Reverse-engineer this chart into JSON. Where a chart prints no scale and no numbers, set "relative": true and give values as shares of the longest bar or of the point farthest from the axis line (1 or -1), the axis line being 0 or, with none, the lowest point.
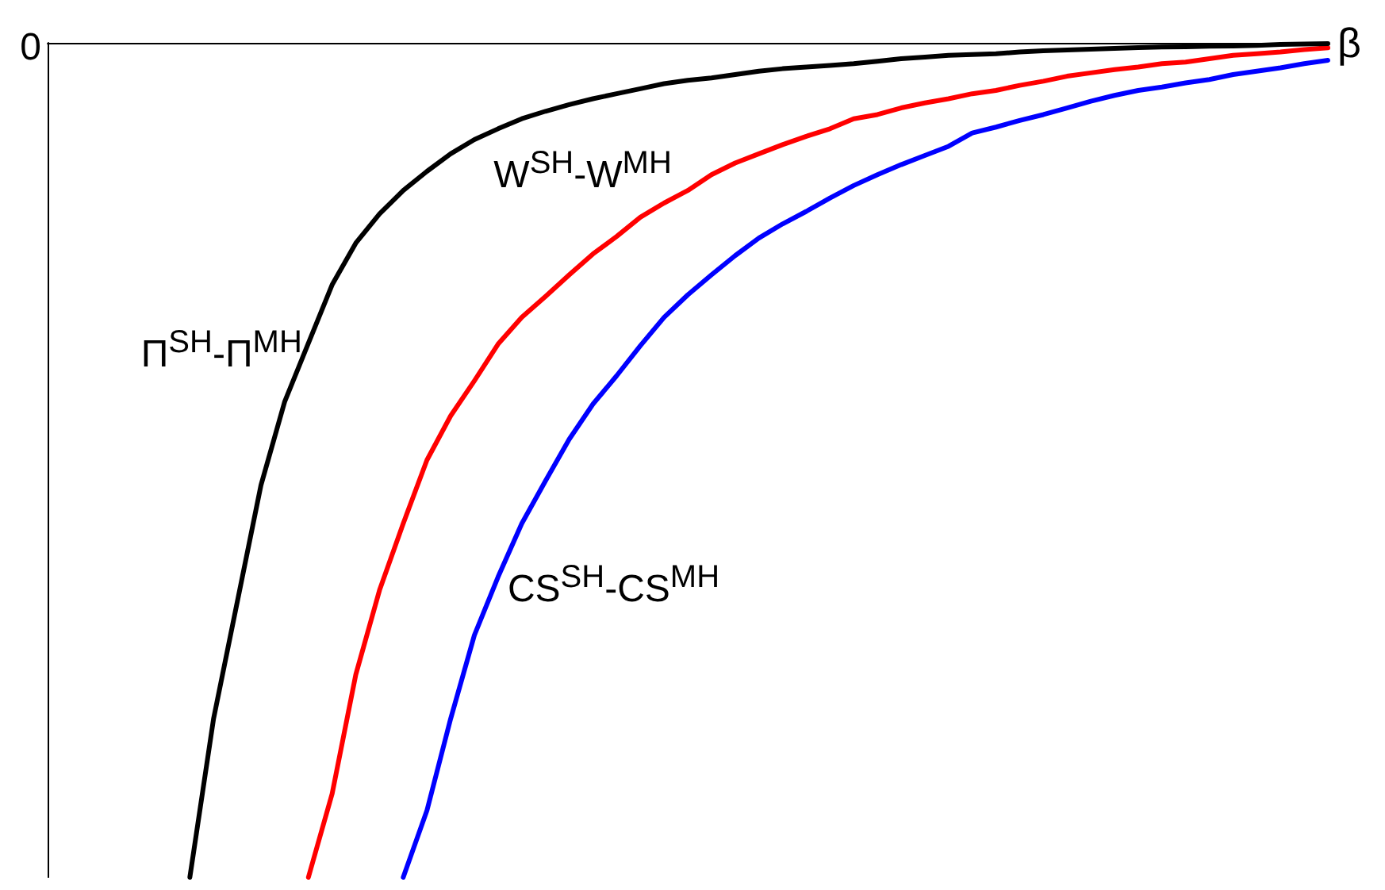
{
  "chart_data": {
    "type": "line",
    "relative": true,
    "xlabel": "β",
    "annotations": [
      "0"
    ],
    "legend": false,
    "grid": false,
    "marker": "none",
    "line_style": "solid",
    "categories": [
      null,
      null,
      null,
      null,
      null,
      null,
      null,
      null,
      null,
      null,
      null,
      null,
      null,
      null,
      null,
      null,
      null,
      null,
      null,
      null,
      null,
      null,
      null,
      null,
      null,
      null,
      null,
      null,
      null,
      null,
      null,
      null,
      null,
      null,
      null,
      null,
      null,
      null,
      null,
      null,
      null,
      null,
      null,
      null,
      null,
      null,
      null,
      null,
      null,
      null,
      null,
      null,
      null,
      null,
      null
    ],
    "series": [
      {
        "name": "Π$^{SH}$-Π$^{MH}$",
        "color": "#000000",
        "values": [
          null,
          null,
          null,
          null,
          null,
          null,
          -1,
          -0.81,
          -0.67,
          -0.53,
          -0.43,
          -0.36,
          -0.29,
          -0.24,
          -0.205,
          -0.177,
          -0.154,
          -0.133,
          -0.116,
          -0.103,
          -0.091,
          -0.082,
          -0.074,
          -0.067,
          -0.061,
          -0.055,
          -0.049,
          -0.045,
          -0.042,
          -0.038,
          -0.034,
          -0.031,
          -0.029,
          -0.027,
          -0.025,
          -0.022,
          -0.019,
          -0.017,
          -0.015,
          -0.014,
          -0.013,
          -0.011,
          -0.0095,
          -0.0085,
          -0.0076,
          -0.0066,
          -0.0057,
          -0.005,
          -0.0048,
          -0.004,
          -0.0038,
          -0.003,
          -0.002,
          -0.0015,
          -0.001
        ]
      },
      {
        "name": "W$^{SH}$-W$^{MH}$",
        "color": "#ff0000",
        "values": [
          null,
          null,
          null,
          null,
          null,
          null,
          null,
          null,
          null,
          null,
          null,
          -1,
          -0.9,
          -0.757,
          -0.656,
          -0.576,
          -0.5,
          -0.447,
          -0.405,
          -0.361,
          -0.329,
          -0.304,
          -0.278,
          -0.253,
          -0.232,
          -0.209,
          -0.192,
          -0.177,
          -0.158,
          -0.144,
          -0.133,
          -0.122,
          -0.112,
          -0.103,
          -0.091,
          -0.086,
          -0.078,
          -0.072,
          -0.067,
          -0.061,
          -0.057,
          -0.051,
          -0.046,
          -0.04,
          -0.036,
          -0.032,
          -0.029,
          -0.025,
          -0.023,
          -0.019,
          -0.015,
          -0.013,
          -0.011,
          -0.008,
          -0.006
        ]
      },
      {
        "name": "CS$^{SH}$-CS$^{MH}$",
        "color": "#0000ff",
        "values": [
          null,
          null,
          null,
          null,
          null,
          null,
          null,
          null,
          null,
          null,
          null,
          null,
          null,
          null,
          null,
          -1,
          -0.92,
          -0.81,
          -0.71,
          -0.64,
          -0.576,
          -0.525,
          -0.475,
          -0.433,
          -0.399,
          -0.363,
          -0.329,
          -0.302,
          -0.278,
          -0.255,
          -0.234,
          -0.217,
          -0.202,
          -0.186,
          -0.171,
          -0.158,
          -0.146,
          -0.135,
          -0.124,
          -0.108,
          -0.101,
          -0.093,
          -0.086,
          -0.078,
          -0.07,
          -0.063,
          -0.057,
          -0.053,
          -0.048,
          -0.044,
          -0.038,
          -0.034,
          -0.03,
          -0.025,
          -0.021
        ]
      }
    ]
  }
}
